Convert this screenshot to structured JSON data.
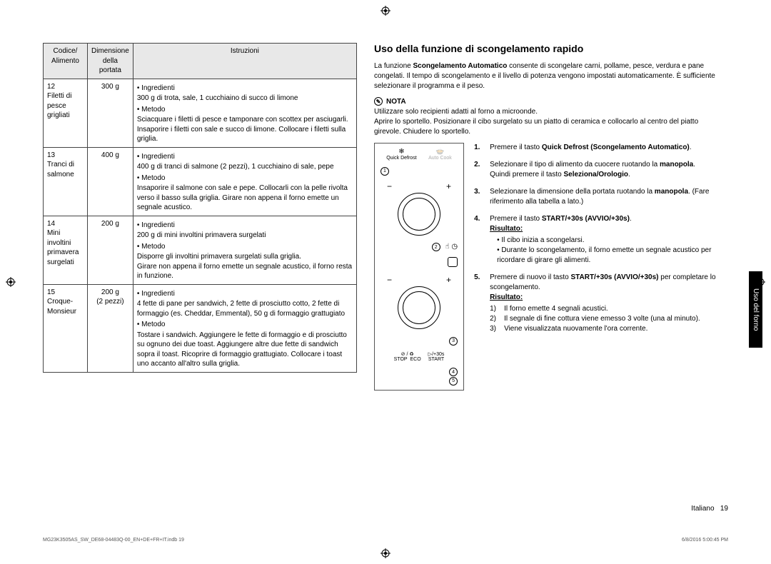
{
  "crop_color": "#000000",
  "table": {
    "headers": [
      "Codice/\nAlimento",
      "Dimensione\ndella portata",
      "Istruzioni"
    ],
    "rows": [
      {
        "code": "12\nFiletti di pesce grigliati",
        "size": "300 g",
        "ing_h": "Ingredienti",
        "ing": "300 g di trota, sale, 1 cucchiaino di succo di limone",
        "met_h": "Metodo",
        "met": "Sciacquare i filetti di pesce e tamponare con scottex per asciugarli. Insaporire i filetti con sale e succo di limone. Collocare i filetti sulla griglia."
      },
      {
        "code": "13\nTranci di salmone",
        "size": "400 g",
        "ing_h": "Ingredienti",
        "ing": "400 g di tranci di salmone (2 pezzi), 1 cucchiaino di sale, pepe",
        "met_h": "Metodo",
        "met": "Insaporire il salmone con sale e pepe. Collocarli con la pelle rivolta verso il basso sulla griglia. Girare non appena il forno emette un segnale acustico."
      },
      {
        "code": "14\nMini involtini primavera surgelati",
        "size": "200 g",
        "ing_h": "Ingredienti",
        "ing": "200 g di mini involtini primavera surgelati",
        "met_h": "Metodo",
        "met": "Disporre gli involtini primavera surgelati sulla griglia.\nGirare non appena il forno emette un segnale acustico, il forno resta in funzione."
      },
      {
        "code": "15\nCroque-Monsieur",
        "size": "200 g\n(2 pezzi)",
        "ing_h": "Ingredienti",
        "ing": "4 fette di pane per sandwich, 2 fette di prosciutto cotto, 2 fette di formaggio (es. Cheddar, Emmental), 50 g di formaggio grattugiato",
        "met_h": "Metodo",
        "met": "Tostare i sandwich. Aggiungere le fette di formaggio e di prosciutto su ognuno dei due toast. Aggiungere altre due fette di sandwich sopra il toast. Ricoprire di formaggio grattugiato. Collocare i toast uno accanto all'altro sulla griglia."
      }
    ]
  },
  "right": {
    "title": "Uso della funzione di scongelamento rapido",
    "intro": "La funzione <b>Scongelamento Automatico</b> consente di scongelare carni, pollame, pesce, verdura e pane congelati. Il tempo di scongelamento e il livello di potenza vengono impostati automaticamente. È sufficiente selezionare il programma e il peso.",
    "nota_h": "NOTA",
    "nota_body": "Utilizzare solo recipienti adatti al forno a microonde.\nAprire lo sportello. Posizionare il cibo surgelato su un piatto di ceramica e collocarlo al centro del piatto girevole. Chiudere lo sportello.",
    "panel": {
      "label_qd": "Quick Defrost",
      "label_ac": "Auto Cook",
      "stop": "STOP",
      "eco": "ECO",
      "start": "START",
      "plus30": "/+30s",
      "tags": [
        "1",
        "2",
        "3",
        "4",
        "5"
      ]
    },
    "steps": [
      {
        "n": "1.",
        "t": "Premere il tasto <b>Quick Defrost (Scongelamento Automatico)</b>."
      },
      {
        "n": "2.",
        "t": "Selezionare il tipo di alimento da cuocere ruotando la <b>manopola</b>. Quindi premere il tasto <b>Seleziona/Orologio</b>."
      },
      {
        "n": "3.",
        "t": "Selezionare la dimensione della portata ruotando la <b>manopola</b>. (Fare riferimento alla tabella a lato.)"
      },
      {
        "n": "4.",
        "t": "Premere il tasto <b>START/+30s (AVVIO/+30s)</b>.\n<b><u>Risultato:</u></b>",
        "bul": [
          "Il cibo inizia a scongelarsi.",
          "Durante lo scongelamento, il forno emette un segnale acustico per ricordare di girare gli alimenti."
        ]
      },
      {
        "n": "5.",
        "t": "Premere di nuovo il tasto <b>START/+30s (AVVIO/+30s)</b> per completare lo scongelamento.\n<b><u>Risultato:</u></b>",
        "num": [
          [
            "1)",
            "Il forno emette 4 segnali acustici."
          ],
          [
            "2)",
            "Il segnale di fine cottura viene emesso 3 volte (una al minuto)."
          ],
          [
            "3)",
            "Viene visualizzata nuovamente l'ora corrente."
          ]
        ]
      }
    ]
  },
  "side_tab": "Uso del forno",
  "footer_lang": "Italiano",
  "footer_page": "19",
  "footer_file": "MG23K3505AS_SW_DE68-04483Q-00_EN+DE+FR+IT.indb   19",
  "footer_date": "6/8/2016   5:00:45 PM"
}
